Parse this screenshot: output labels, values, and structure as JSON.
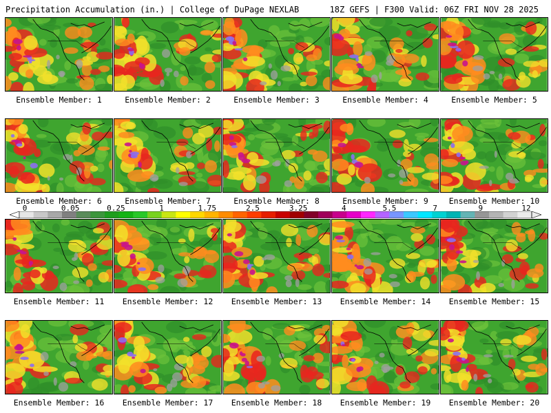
{
  "header": {
    "title": "Precipitation Accumulation (in.) | College of DuPage NEXLAB",
    "run_info": "18Z GEFS | F300 Valid: 06Z FRI NOV 28 2025"
  },
  "members": [
    {
      "label": "Ensemble Member: 1"
    },
    {
      "label": "Ensemble Member: 2"
    },
    {
      "label": "Ensemble Member: 3"
    },
    {
      "label": "Ensemble Member: 4"
    },
    {
      "label": "Ensemble Member: 5"
    },
    {
      "label": "Ensemble Member: 6"
    },
    {
      "label": "Ensemble Member: 7"
    },
    {
      "label": "Ensemble Member: 8"
    },
    {
      "label": "Ensemble Member: 9"
    },
    {
      "label": "Ensemble Member: 10"
    },
    {
      "label": "Ensemble Member: 11"
    },
    {
      "label": "Ensemble Member: 12"
    },
    {
      "label": "Ensemble Member: 13"
    },
    {
      "label": "Ensemble Member: 14"
    },
    {
      "label": "Ensemble Member: 15"
    },
    {
      "label": "Ensemble Member: 16"
    },
    {
      "label": "Ensemble Member: 17"
    },
    {
      "label": "Ensemble Member: 18"
    },
    {
      "label": "Ensemble Member: 19"
    },
    {
      "label": "Ensemble Member: 20"
    }
  ],
  "colorbar": {
    "tick_labels": [
      "0",
      "0.05",
      "0.25",
      "1",
      "1.75",
      "2.5",
      "3.25",
      "4",
      "5.5",
      "7",
      "9",
      "12"
    ],
    "colors": [
      "#e6e6e6",
      "#c8c8c8",
      "#a8a8a8",
      "#808080",
      "#5a8c5a",
      "#3c963c",
      "#1e9e1e",
      "#14b414",
      "#28c828",
      "#78d21e",
      "#c8e614",
      "#ffff00",
      "#ffd700",
      "#ffb400",
      "#ff8c00",
      "#ff6400",
      "#ff3c00",
      "#e61e00",
      "#c80000",
      "#a00000",
      "#820028",
      "#a0005a",
      "#c8008c",
      "#e600c8",
      "#ff28ff",
      "#b464ff",
      "#7896ff",
      "#3cc8ff",
      "#00e6ff",
      "#00d2d2",
      "#00b4b4",
      "#64b4b4",
      "#969696",
      "#b4b4b4",
      "#d2d2d2",
      "#ebebeb"
    ]
  },
  "legend_colors": {
    "land_base": "#2f8f2a",
    "land_mid": "#3fa52f",
    "land_light": "#6cc23a",
    "wet_yellow": "#f2e02a",
    "wet_orange": "#ff8c1e",
    "wet_red": "#e8261e",
    "wet_magenta": "#c8148c",
    "wet_purple": "#8c6ef0",
    "dry_gray": "#a0a0a0",
    "outline": "#000000"
  }
}
